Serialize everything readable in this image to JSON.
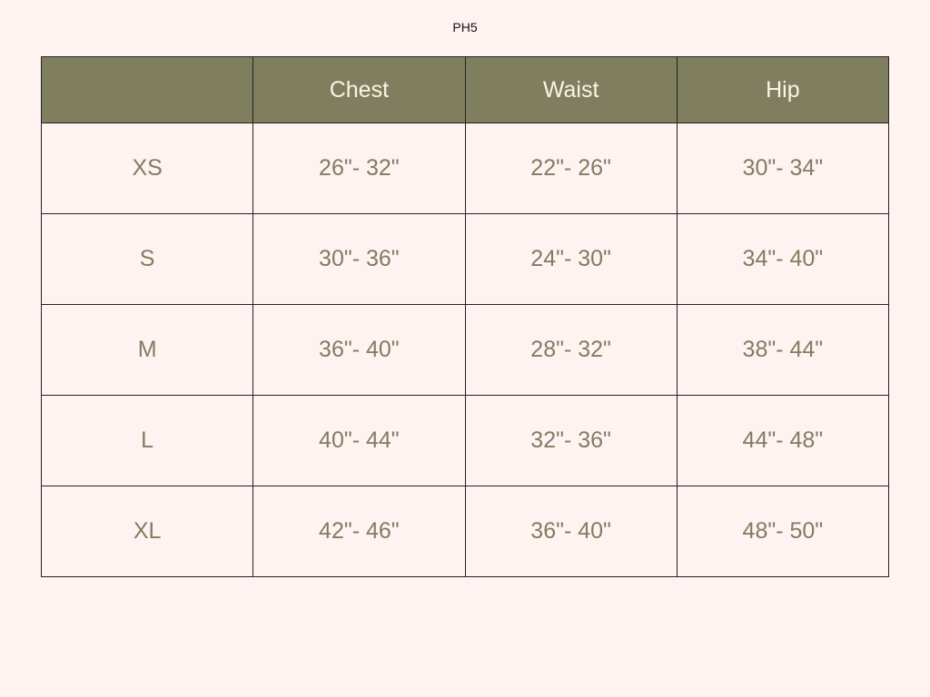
{
  "title": "PH5",
  "colors": {
    "header_bg": "#7f7f5f",
    "header_text": "#fbf3e4",
    "cell_text": "#7f7d62",
    "background": "#fff3f1"
  },
  "table": {
    "headers": [
      "",
      "Chest",
      "Waist",
      "Hip"
    ],
    "rows": [
      [
        "XS",
        "26\"- 32\"",
        "22\"- 26\"",
        "30\"- 34\""
      ],
      [
        "S",
        "30\"- 36\"",
        "24\"- 30\"",
        "34\"- 40\""
      ],
      [
        "M",
        "36\"- 40\"",
        "28\"- 32\"",
        "38\"- 44\""
      ],
      [
        "L",
        "40\"- 44\"",
        "32\"- 36\"",
        "44\"- 48\""
      ],
      [
        "XL",
        "42\"- 46\"",
        "36\"- 40\"",
        "48\"- 50\""
      ]
    ]
  }
}
